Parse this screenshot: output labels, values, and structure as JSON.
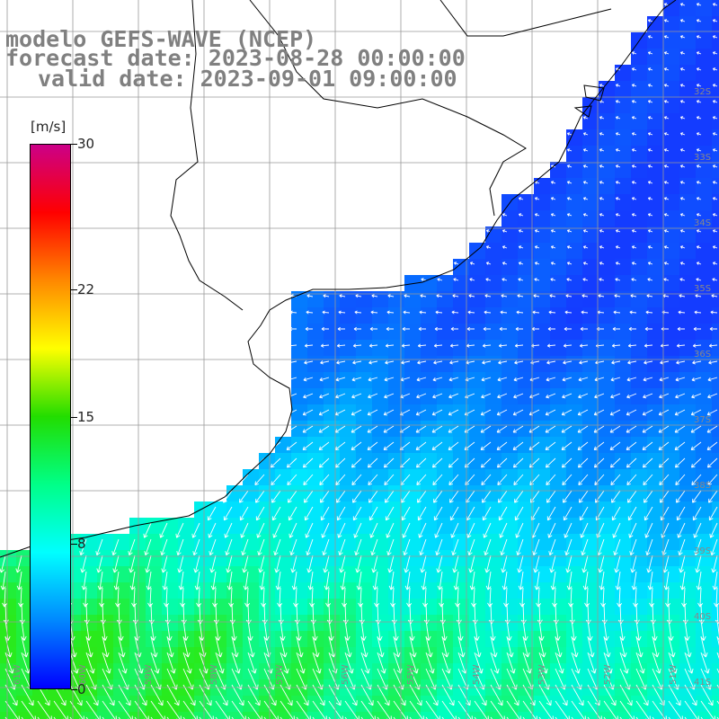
{
  "title": {
    "line1": "modelo GEFS-WAVE (NCEP)",
    "line2": "forecast date: 2023-08-28 00:00:00",
    "line3": "valid date: 2023-09-01 09:00:00"
  },
  "colorbar": {
    "unit": "[m/s]",
    "ticks": [
      "30",
      "22",
      "15",
      "8",
      "0"
    ],
    "tick_values": [
      30,
      22,
      15,
      8,
      0
    ],
    "colors": [
      "#0000ff",
      "#0088ff",
      "#00ffff",
      "#00ff88",
      "#22dd00",
      "#ffff00",
      "#ff8800",
      "#ff0000",
      "#cc0088"
    ]
  },
  "map": {
    "lat_labels": [
      "32S",
      "33S",
      "34S",
      "35S",
      "36S",
      "37S",
      "38S",
      "39S",
      "40S",
      "41S"
    ],
    "lon_labels": [
      "61W",
      "60W",
      "59W",
      "58W",
      "57W",
      "56W",
      "55W",
      "54W",
      "53W",
      "52W",
      "51W"
    ],
    "land_color": "#ffffff",
    "grid_color": "#999999",
    "arrow_color": "#ffffff"
  }
}
